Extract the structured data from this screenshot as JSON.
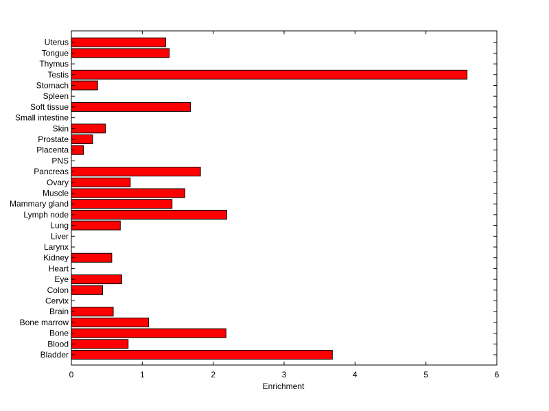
{
  "chart_data": {
    "type": "bar",
    "orientation": "horizontal",
    "categories": [
      "Bladder",
      "Blood",
      "Bone",
      "Bone marrow",
      "Brain",
      "Cervix",
      "Colon",
      "Eye",
      "Heart",
      "Kidney",
      "Larynx",
      "Liver",
      "Lung",
      "Lymph node",
      "Mammary gland",
      "Muscle",
      "Ovary",
      "Pancreas",
      "PNS",
      "Placenta",
      "Prostate",
      "Skin",
      "Small intestine",
      "Soft tissue",
      "Spleen",
      "Stomach",
      "Testis",
      "Thymus",
      "Tongue",
      "Uterus"
    ],
    "values": [
      3.68,
      0.8,
      2.18,
      1.09,
      0.59,
      0,
      0.44,
      0.71,
      0,
      0.57,
      0,
      0,
      0.69,
      2.19,
      1.42,
      1.6,
      0.83,
      1.82,
      0,
      0.17,
      0.3,
      0.48,
      0,
      1.68,
      0,
      0.37,
      5.58,
      0,
      1.38,
      1.33
    ],
    "bar_color": "#ff0000",
    "title": "",
    "xlabel": "Enrichment",
    "ylabel": "",
    "xlim": [
      0,
      6
    ],
    "xticks": [
      0,
      1,
      2,
      3,
      4,
      5,
      6
    ],
    "grid": false,
    "legend": false
  }
}
